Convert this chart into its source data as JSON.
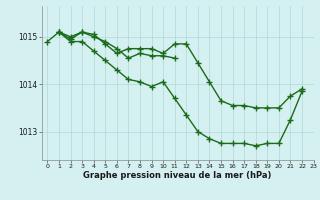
{
  "background_color": "#d5f0f0",
  "grid_color": "#b0d8d8",
  "line_color": "#1a6b1a",
  "xlabel": "Graphe pression niveau de la mer (hPa)",
  "ylim": [
    1012.4,
    1015.65
  ],
  "xlim": [
    -0.5,
    23
  ],
  "yticks": [
    1013,
    1014,
    1015
  ],
  "xticks": [
    0,
    1,
    2,
    3,
    4,
    5,
    6,
    7,
    8,
    9,
    10,
    11,
    12,
    13,
    14,
    15,
    16,
    17,
    18,
    19,
    20,
    21,
    22,
    23
  ],
  "line1_x": [
    0,
    1,
    2,
    3,
    4,
    5,
    6,
    7,
    8,
    9,
    10,
    11,
    12,
    13,
    14,
    15,
    16,
    17,
    18,
    19,
    20,
    21,
    22
  ],
  "line1_y": [
    1014.9,
    1015.1,
    1015.0,
    1015.1,
    1015.05,
    1014.85,
    1014.65,
    1014.75,
    1014.75,
    1014.75,
    1014.65,
    1014.85,
    1014.85,
    1014.45,
    1014.05,
    1013.65,
    1013.55,
    1013.55,
    1013.5,
    1013.5,
    1013.5,
    1013.75,
    1013.9
  ],
  "line2_x": [
    1,
    2,
    3,
    4,
    5,
    6,
    7,
    8,
    9,
    10,
    11
  ],
  "line2_y": [
    1015.1,
    1014.95,
    1015.1,
    1015.0,
    1014.9,
    1014.75,
    1014.55,
    1014.65,
    1014.6,
    1014.6,
    1014.55
  ],
  "line3_x": [
    1,
    2,
    3,
    4,
    5,
    6,
    7,
    8,
    9,
    10,
    11,
    12,
    13,
    14,
    15,
    16,
    17,
    18,
    19,
    20,
    21,
    22
  ],
  "line3_y": [
    1015.1,
    1014.9,
    1014.9,
    1014.7,
    1014.5,
    1014.3,
    1014.1,
    1014.05,
    1013.95,
    1014.05,
    1013.7,
    1013.35,
    1013.0,
    1012.85,
    1012.75,
    1012.75,
    1012.75,
    1012.7,
    1012.75,
    1012.75,
    1013.25,
    1013.85
  ]
}
